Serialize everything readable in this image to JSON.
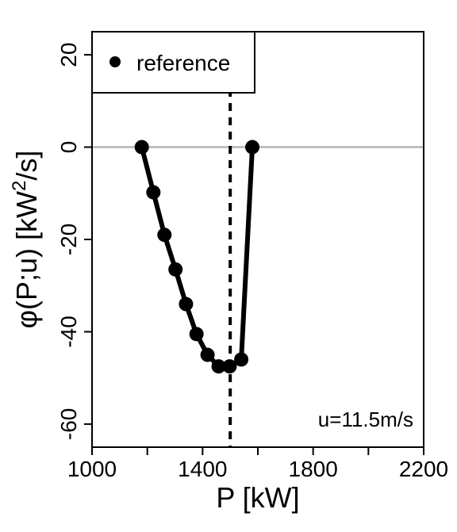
{
  "chart_data": {
    "type": "line",
    "xlabel": "P [kW]",
    "ylabel_main": "φ(P;u) [kW",
    "ylabel_sup": "2",
    "ylabel_tail": "/s]",
    "xlim": [
      1000,
      2200
    ],
    "ylim": [
      -65,
      25
    ],
    "xticks": [
      1000,
      1200,
      1400,
      1600,
      1800,
      2000,
      2200
    ],
    "xtick_labels": [
      "1000",
      "",
      "1400",
      "",
      "1800",
      "",
      "2200"
    ],
    "yticks": [
      -60,
      -40,
      -20,
      0,
      20
    ],
    "ytick_labels": [
      "-60",
      "-40",
      "-20",
      "0",
      "20"
    ],
    "series": [
      {
        "name": "reference",
        "color": "#000000",
        "x": [
          1180,
          1222,
          1262,
          1302,
          1340,
          1378,
          1418,
          1458,
          1498,
          1540,
          1580
        ],
        "y": [
          0,
          -9.8,
          -19,
          -26.5,
          -34,
          -40.5,
          -45,
          -47.5,
          -47.5,
          -46,
          0
        ]
      }
    ],
    "reference_hline": {
      "y": 0,
      "color": "#c0c0c0"
    },
    "reference_vline": {
      "x": 1500,
      "style": "dashed"
    },
    "legend": {
      "label": "reference",
      "position": "top-left"
    },
    "annotation": "u=11.5m/s"
  }
}
